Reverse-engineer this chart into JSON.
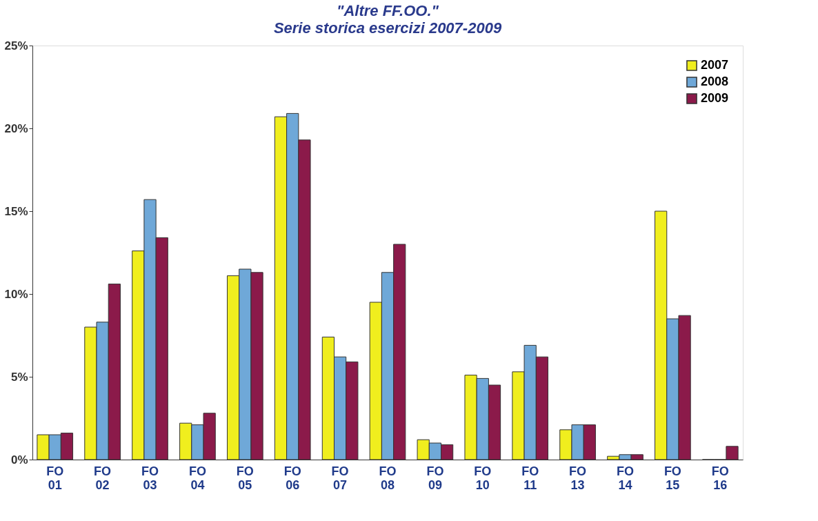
{
  "chart_data": {
    "type": "bar",
    "title": "\"Altre FF.OO.\"",
    "subtitle": "Serie storica esercizi 2007-2009",
    "categories": [
      "FO 01",
      "FO 02",
      "FO 03",
      "FO 04",
      "FO 05",
      "FO 06",
      "FO 07",
      "FO 08",
      "FO 09",
      "FO 10",
      "FO 11",
      "FO 13",
      "FO 14",
      "FO 15",
      "FO 16"
    ],
    "series": [
      {
        "name": "2007",
        "color": "#f0ee1e",
        "values": [
          1.5,
          8.0,
          12.6,
          2.2,
          11.1,
          20.7,
          7.4,
          9.5,
          1.2,
          5.1,
          5.3,
          1.8,
          0.2,
          15.0,
          0.0
        ]
      },
      {
        "name": "2008",
        "color": "#6fa8d8",
        "values": [
          1.5,
          8.3,
          15.7,
          2.1,
          11.5,
          20.9,
          6.2,
          11.3,
          1.0,
          4.9,
          6.9,
          2.1,
          0.3,
          8.5,
          0.0
        ]
      },
      {
        "name": "2009",
        "color": "#8b1a4a",
        "values": [
          1.6,
          10.6,
          13.4,
          2.8,
          11.3,
          19.3,
          5.9,
          13.0,
          0.9,
          4.5,
          6.2,
          2.1,
          0.3,
          8.7,
          0.8
        ]
      }
    ],
    "ylim": [
      0,
      25
    ],
    "yticks": [
      {
        "value": 0,
        "label": "0%"
      },
      {
        "value": 5,
        "label": "5%"
      },
      {
        "value": 10,
        "label": "10%"
      },
      {
        "value": 15,
        "label": "15%"
      },
      {
        "value": 20,
        "label": "20%"
      },
      {
        "value": 25,
        "label": "25%"
      }
    ],
    "grid": false,
    "legend": "top right"
  }
}
